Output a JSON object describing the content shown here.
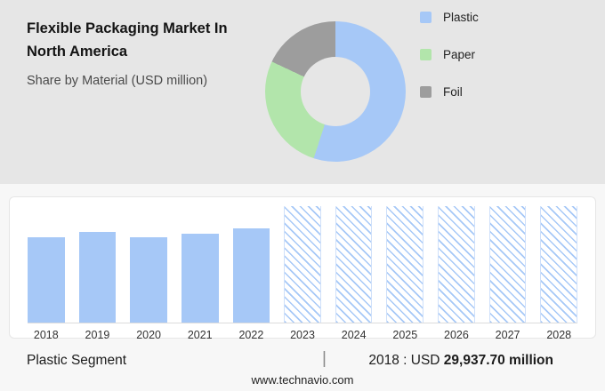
{
  "header": {
    "title_lines": [
      "Flexible Packaging Market In",
      "North America"
    ],
    "subtitle": "Share by Material (USD million)"
  },
  "legend": {
    "items": [
      {
        "label": "Plastic",
        "color": "#a6c8f7"
      },
      {
        "label": "Paper",
        "color": "#b2e5ab"
      },
      {
        "label": "Foil",
        "color": "#9d9d9d"
      }
    ]
  },
  "chart_data": [
    {
      "type": "pie",
      "title": "Flexible Packaging Market In North America — Share by Material (USD million)",
      "labels": [
        "Plastic",
        "Paper",
        "Foil"
      ],
      "values": [
        55,
        27,
        18
      ],
      "colors": [
        "#a6c8f7",
        "#b2e5ab",
        "#9d9d9d"
      ],
      "donut": true,
      "legend_position": "right"
    },
    {
      "type": "bar",
      "categories": [
        "2018",
        "2019",
        "2020",
        "2021",
        "2022",
        "2023",
        "2024",
        "2025",
        "2026",
        "2027",
        "2028"
      ],
      "series": [
        {
          "name": "Plastic segment size (USD million)",
          "values": [
            29937.7,
            31800,
            30200,
            31400,
            33300,
            null,
            null,
            null,
            null,
            null,
            null
          ]
        }
      ],
      "solid_count": 5,
      "forecast_categories": [
        "2023",
        "2024",
        "2025",
        "2026",
        "2027",
        "2028"
      ],
      "bar_color": "#a6c8f7",
      "ylim": [
        0,
        41000
      ],
      "gridlines": false
    }
  ],
  "footer": {
    "segment_label": "Plastic Segment",
    "divider": "|",
    "stat_prefix": "2018 : USD ",
    "stat_value": "29,937.70 million",
    "website": "www.technavio.com"
  }
}
